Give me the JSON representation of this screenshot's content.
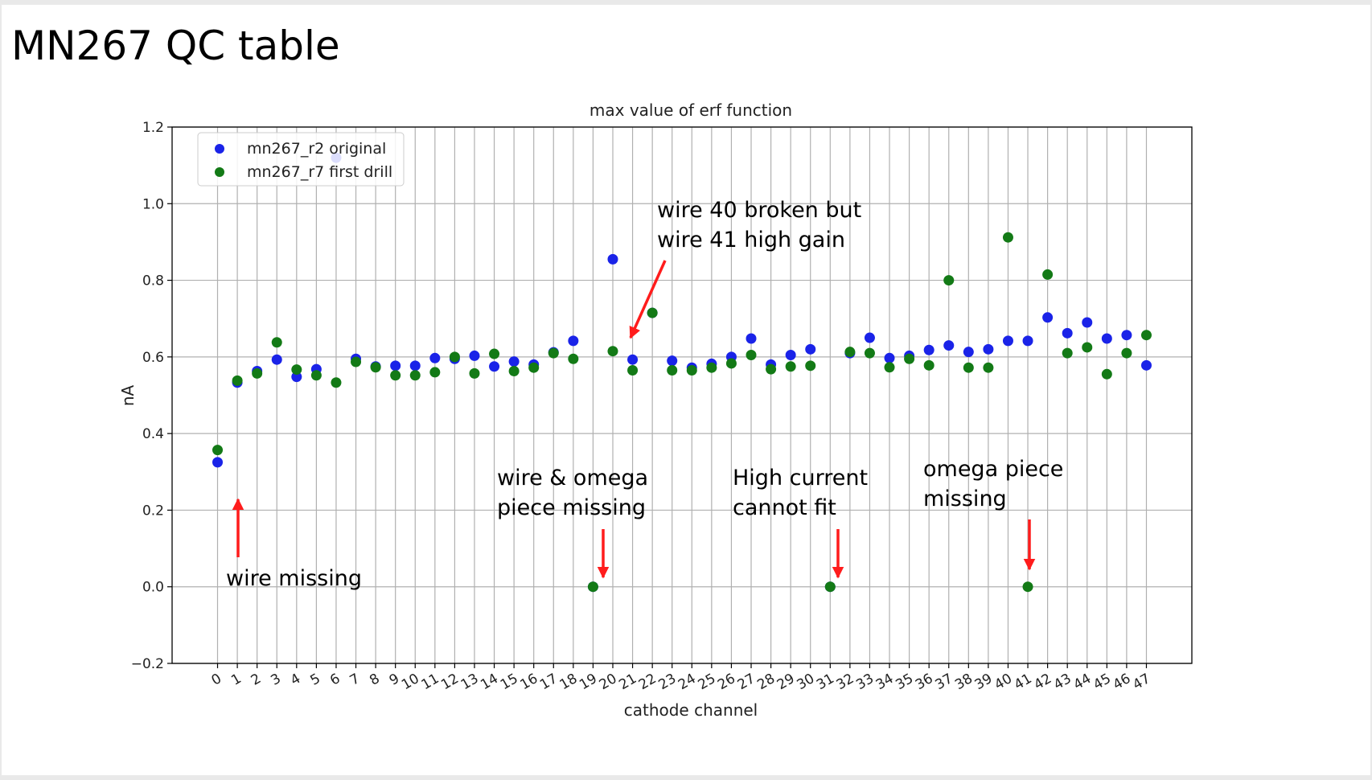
{
  "slide": {
    "title": "MN267 QC table"
  },
  "colors": {
    "series_original": "#1a23e8",
    "series_first_drill": "#137a16",
    "arrow": "#ff1c1c",
    "grid": "#b0b0b0"
  },
  "chart_data": {
    "type": "scatter",
    "title": "max value of erf function",
    "xlabel": "cathode channel",
    "ylabel": "nA",
    "xlim": [
      -2.3,
      49.3
    ],
    "ylim": [
      -0.2,
      1.2
    ],
    "yticks": [
      "−0.2",
      "0.0",
      "0.2",
      "0.4",
      "0.6",
      "0.8",
      "1.0",
      "1.2"
    ],
    "yticks_values": [
      -0.2,
      0.0,
      0.2,
      0.4,
      0.6,
      0.8,
      1.0,
      1.2
    ],
    "xticks": [
      0,
      1,
      2,
      3,
      4,
      5,
      6,
      7,
      8,
      9,
      10,
      11,
      12,
      13,
      14,
      15,
      16,
      17,
      18,
      19,
      20,
      21,
      22,
      23,
      24,
      25,
      26,
      27,
      28,
      29,
      30,
      31,
      32,
      33,
      34,
      35,
      36,
      37,
      38,
      39,
      40,
      41,
      42,
      43,
      44,
      45,
      46,
      47
    ],
    "xticks_labels": [
      "0",
      "1",
      "2",
      "3",
      "4",
      "5",
      "6",
      "7",
      "8",
      "9",
      "10",
      "11",
      "12",
      "13",
      "14",
      "15",
      "16",
      "17",
      "18",
      "19",
      "20",
      "21",
      "22",
      "23",
      "24",
      "25",
      "26",
      "27",
      "28",
      "29",
      "30",
      "31",
      "32",
      "33",
      "34",
      "35",
      "36",
      "37",
      "38",
      "39",
      "40",
      "41",
      "42",
      "43",
      "44",
      "45",
      "46",
      "47"
    ],
    "grid": true,
    "legend_position": "top-left",
    "series": [
      {
        "name": "mn267_r2 original",
        "color": "#1a23e8",
        "x": [
          0,
          1,
          2,
          3,
          4,
          5,
          6,
          7,
          8,
          9,
          10,
          11,
          12,
          13,
          14,
          15,
          16,
          17,
          18,
          19,
          20,
          21,
          22,
          23,
          24,
          25,
          26,
          27,
          28,
          29,
          30,
          31,
          32,
          33,
          34,
          35,
          36,
          37,
          38,
          39,
          40,
          41,
          42,
          43,
          44,
          45,
          46,
          47
        ],
        "y": [
          0.325,
          0.533,
          0.563,
          0.593,
          0.548,
          0.568,
          1.12,
          0.595,
          0.575,
          0.577,
          0.577,
          0.597,
          0.595,
          0.603,
          0.575,
          0.588,
          0.58,
          0.612,
          0.642,
          0.0,
          0.855,
          0.593,
          0.715,
          0.59,
          0.572,
          0.582,
          0.6,
          0.648,
          0.58,
          0.605,
          0.62,
          0.0,
          0.61,
          0.65,
          0.597,
          0.603,
          0.618,
          0.63,
          0.613,
          0.62,
          0.642,
          0.642,
          0.703,
          0.662,
          0.69,
          0.648,
          0.657,
          0.578
        ]
      },
      {
        "name": "mn267_r7 first drill",
        "color": "#137a16",
        "x": [
          0,
          1,
          2,
          3,
          4,
          5,
          6,
          7,
          8,
          9,
          10,
          11,
          12,
          13,
          14,
          15,
          16,
          17,
          18,
          19,
          20,
          21,
          22,
          23,
          24,
          25,
          26,
          27,
          28,
          29,
          30,
          31,
          32,
          33,
          34,
          35,
          36,
          37,
          38,
          39,
          40,
          41,
          42,
          43,
          44,
          45,
          46,
          47
        ],
        "y": [
          0.357,
          0.538,
          0.557,
          0.638,
          0.567,
          0.552,
          0.533,
          0.587,
          0.573,
          0.552,
          0.552,
          0.56,
          0.6,
          0.557,
          0.608,
          0.563,
          0.572,
          0.61,
          0.595,
          0.0,
          0.615,
          0.565,
          0.715,
          0.565,
          0.565,
          0.572,
          0.583,
          0.605,
          0.568,
          0.575,
          0.577,
          0.0,
          0.613,
          0.61,
          0.573,
          0.595,
          0.578,
          0.8,
          0.572,
          0.572,
          0.912,
          0.0,
          0.815,
          0.61,
          0.625,
          0.555,
          0.61,
          0.657
        ]
      }
    ],
    "annotations": [
      {
        "lines": [
          "wire missing"
        ],
        "arrow_to": [
          0,
          0.23
        ]
      },
      {
        "lines": [
          "wire & omega",
          "piece missing"
        ],
        "arrow_to": [
          19,
          0.02
        ]
      },
      {
        "lines": [
          "wire 40 broken but",
          "wire 41 high gain"
        ],
        "arrow_to": [
          20.3,
          0.645
        ]
      },
      {
        "lines": [
          "High current",
          "cannot fit"
        ],
        "arrow_to": [
          31,
          0.02
        ]
      },
      {
        "lines": [
          "omega piece",
          "missing"
        ],
        "arrow_to": [
          41,
          0.04
        ]
      }
    ]
  }
}
